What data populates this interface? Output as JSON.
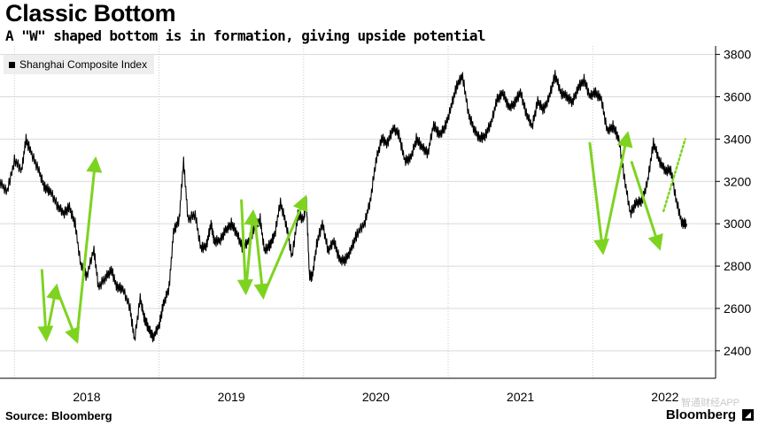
{
  "header": {
    "title": "Classic Bottom",
    "subtitle": "A \"W\" shaped bottom is in formation, giving upside potential"
  },
  "legend": {
    "label": "Shanghai Composite Index"
  },
  "footer": {
    "source": "Source: Bloomberg",
    "brand": "Bloomberg",
    "watermark": "智通财经APP"
  },
  "colors": {
    "line": "#000000",
    "arrow": "#7ed321",
    "grid": "#d9d9d9",
    "dotted_grid": "#c8c8c8"
  },
  "chart_data": {
    "type": "line",
    "title": "Classic Bottom",
    "subtitle": "A \"W\" shaped bottom is in formation, giving upside potential",
    "xlabel": "",
    "ylabel": "",
    "x_ticks": [
      "2018",
      "2019",
      "2020",
      "2021",
      "2022"
    ],
    "y_ticks": [
      2400,
      2600,
      2800,
      3000,
      3200,
      3400,
      3600,
      3800
    ],
    "ylim": [
      2270,
      3840
    ],
    "xlim": [
      2017.9,
      2022.85
    ],
    "grid": "horizontal solid, vertical dotted",
    "legend_position": "top-left",
    "series": [
      {
        "name": "Shanghai Composite Index",
        "x": [
          2017.9,
          2017.95,
          2018.0,
          2018.05,
          2018.08,
          2018.12,
          2018.17,
          2018.21,
          2018.25,
          2018.3,
          2018.34,
          2018.38,
          2018.42,
          2018.46,
          2018.5,
          2018.55,
          2018.58,
          2018.63,
          2018.67,
          2018.71,
          2018.75,
          2018.8,
          2018.83,
          2018.87,
          2018.9,
          2018.93,
          2018.96,
          2019.0,
          2019.03,
          2019.07,
          2019.1,
          2019.14,
          2019.17,
          2019.2,
          2019.25,
          2019.29,
          2019.33,
          2019.36,
          2019.38,
          2019.42,
          2019.46,
          2019.5,
          2019.54,
          2019.58,
          2019.62,
          2019.66,
          2019.7,
          2019.73,
          2019.77,
          2019.8,
          2019.84,
          2019.88,
          2019.92,
          2019.96,
          2020.0,
          2020.02,
          2020.04,
          2020.06,
          2020.09,
          2020.13,
          2020.17,
          2020.21,
          2020.25,
          2020.29,
          2020.33,
          2020.37,
          2020.42,
          2020.46,
          2020.5,
          2020.54,
          2020.58,
          2020.62,
          2020.66,
          2020.7,
          2020.74,
          2020.78,
          2020.82,
          2020.86,
          2020.9,
          2020.94,
          2020.98,
          2021.02,
          2021.06,
          2021.1,
          2021.14,
          2021.18,
          2021.22,
          2021.26,
          2021.3,
          2021.34,
          2021.38,
          2021.42,
          2021.46,
          2021.5,
          2021.54,
          2021.58,
          2021.62,
          2021.66,
          2021.7,
          2021.74,
          2021.78,
          2021.82,
          2021.86,
          2021.9,
          2021.94,
          2021.98,
          2022.02,
          2022.06,
          2022.1,
          2022.14,
          2022.18,
          2022.22,
          2022.26,
          2022.3,
          2022.34,
          2022.38,
          2022.42,
          2022.46,
          2022.5,
          2022.54,
          2022.58,
          2022.62,
          2022.65
        ],
        "values": [
          3200,
          3150,
          3300,
          3250,
          3400,
          3330,
          3250,
          3170,
          3150,
          3080,
          3050,
          3080,
          3000,
          2800,
          2750,
          2880,
          2700,
          2750,
          2780,
          2700,
          2690,
          2600,
          2450,
          2650,
          2550,
          2500,
          2460,
          2520,
          2620,
          2700,
          2960,
          3020,
          3300,
          3020,
          3050,
          2880,
          2900,
          3000,
          2920,
          2920,
          2970,
          3000,
          2950,
          2880,
          2920,
          2980,
          3020,
          2870,
          2900,
          2950,
          3100,
          3000,
          2840,
          3040,
          3020,
          3100,
          2760,
          2750,
          2900,
          3000,
          2870,
          2920,
          2830,
          2830,
          2880,
          2950,
          3000,
          3100,
          3300,
          3400,
          3380,
          3450,
          3420,
          3300,
          3310,
          3400,
          3360,
          3330,
          3470,
          3420,
          3460,
          3550,
          3650,
          3700,
          3520,
          3450,
          3400,
          3420,
          3480,
          3590,
          3620,
          3550,
          3570,
          3620,
          3520,
          3460,
          3580,
          3540,
          3600,
          3700,
          3620,
          3600,
          3580,
          3640,
          3680,
          3600,
          3620,
          3590,
          3440,
          3460,
          3400,
          3210,
          3050,
          3100,
          3110,
          3200,
          3380,
          3300,
          3250,
          3260,
          3100,
          3000,
          3000
        ]
      }
    ],
    "annotations": [
      {
        "type": "arrow",
        "label": "",
        "from": [
          2018.19,
          2780
        ],
        "to": [
          2018.22,
          2460
        ]
      },
      {
        "type": "arrow",
        "label": "",
        "from": [
          2018.22,
          2460
        ],
        "to": [
          2018.29,
          2700
        ]
      },
      {
        "type": "arrow",
        "label": "",
        "from": [
          2018.31,
          2660
        ],
        "to": [
          2018.43,
          2450
        ]
      },
      {
        "type": "arrow",
        "label": "",
        "from": [
          2018.43,
          2450
        ],
        "to": [
          2018.56,
          3300
        ]
      },
      {
        "type": "arrow",
        "label": "",
        "from": [
          2019.57,
          3110
        ],
        "to": [
          2019.6,
          2680
        ]
      },
      {
        "type": "arrow",
        "label": "",
        "from": [
          2019.6,
          2680
        ],
        "to": [
          2019.65,
          3050
        ]
      },
      {
        "type": "arrow",
        "label": "",
        "from": [
          2019.66,
          3040
        ],
        "to": [
          2019.72,
          2660
        ]
      },
      {
        "type": "arrow",
        "label": "",
        "from": [
          2019.72,
          2660
        ],
        "to": [
          2020.01,
          3120
        ]
      },
      {
        "type": "arrow",
        "label": "",
        "from": [
          2021.98,
          3380
        ],
        "to": [
          2022.07,
          2870
        ]
      },
      {
        "type": "arrow",
        "label": "",
        "from": [
          2022.07,
          2870
        ],
        "to": [
          2022.24,
          3420
        ]
      },
      {
        "type": "arrow",
        "label": "",
        "from": [
          2022.27,
          3290
        ],
        "to": [
          2022.46,
          2890
        ]
      },
      {
        "type": "dotted",
        "label": "",
        "from": [
          2022.49,
          3060
        ],
        "to": [
          2022.64,
          3400
        ]
      }
    ]
  }
}
